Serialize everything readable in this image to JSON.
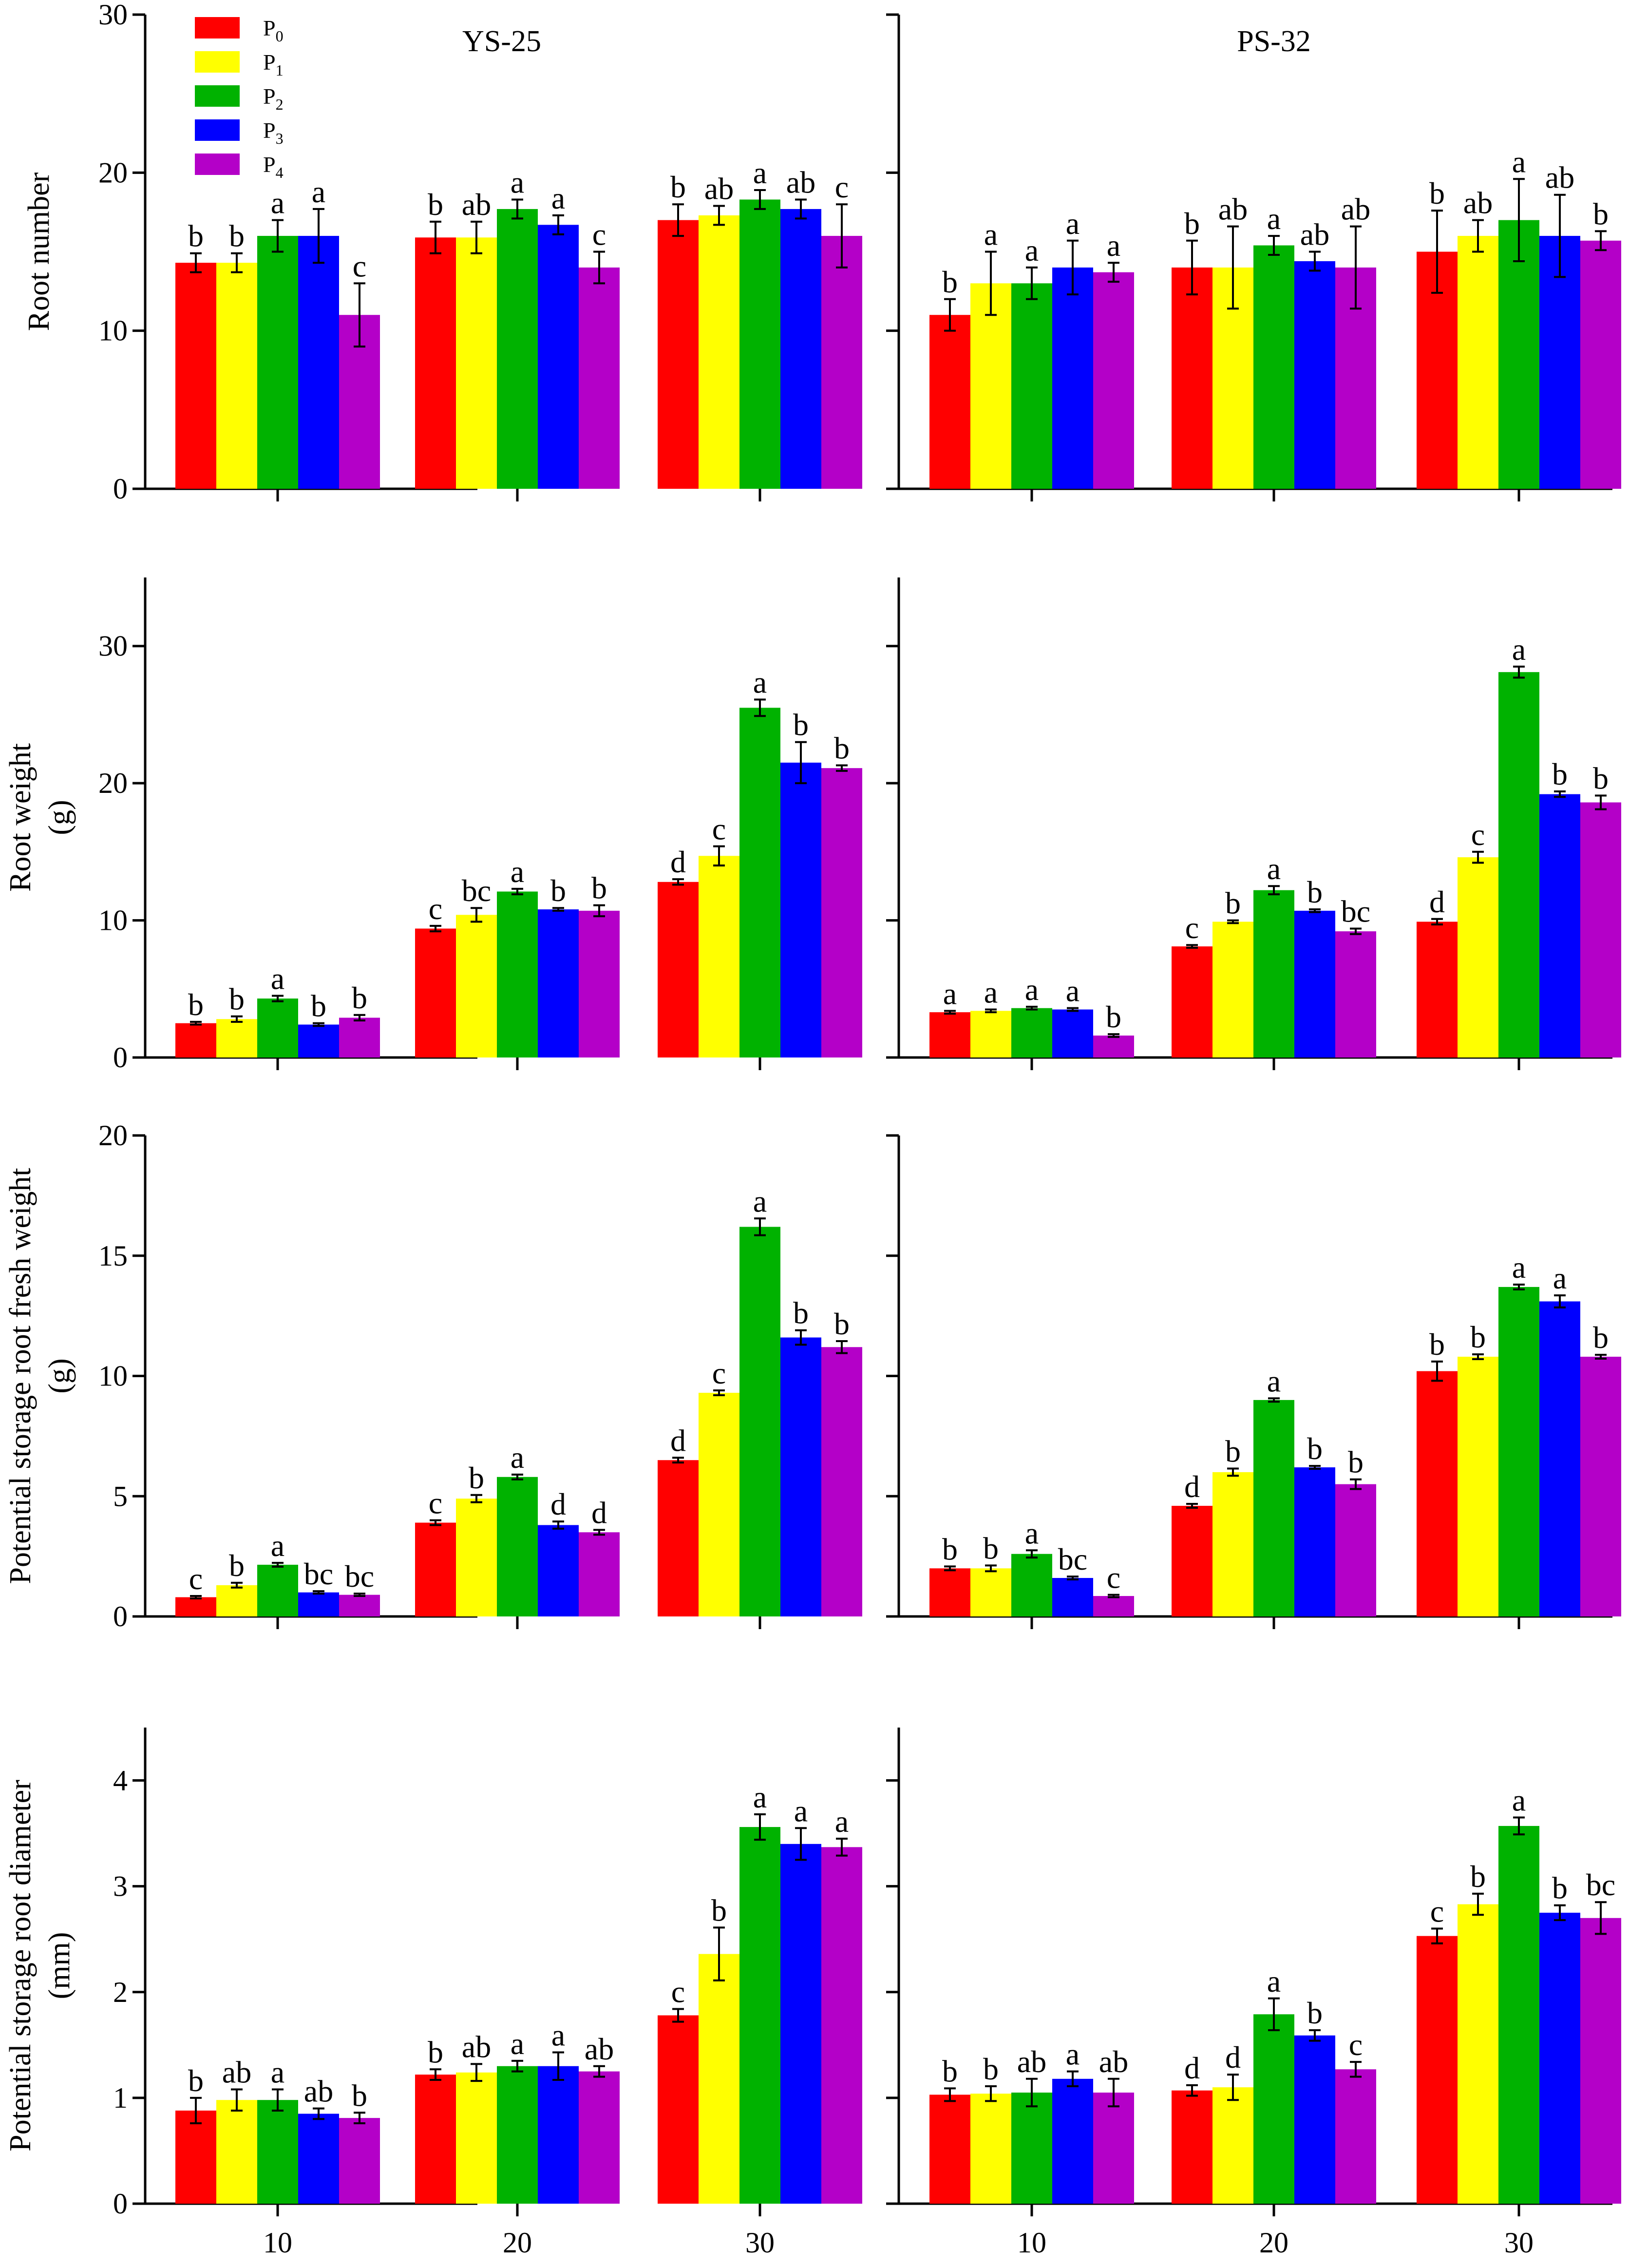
{
  "chart_data": [
    {
      "type": "bar",
      "row": 0,
      "col": 0,
      "title": "YS-25",
      "ylabel": [
        "Root number"
      ],
      "ylim": [
        0,
        30
      ],
      "yticks": [
        0,
        10,
        20,
        30
      ],
      "categories": [
        "10",
        "20",
        "30"
      ],
      "series": [
        {
          "name": "P0",
          "values": [
            14.3,
            15.9,
            17.0
          ],
          "errors": [
            0.6,
            1.0,
            1.0
          ],
          "letters": [
            "b",
            "b",
            "b"
          ]
        },
        {
          "name": "P1",
          "values": [
            14.3,
            15.9,
            17.3
          ],
          "errors": [
            0.6,
            1.0,
            0.6
          ],
          "letters": [
            "b",
            "ab",
            "ab"
          ]
        },
        {
          "name": "P2",
          "values": [
            16.0,
            17.7,
            18.3
          ],
          "errors": [
            1.0,
            0.6,
            0.6
          ],
          "letters": [
            "a",
            "a",
            "a"
          ]
        },
        {
          "name": "P3",
          "values": [
            16.0,
            16.7,
            17.7
          ],
          "errors": [
            1.7,
            0.6,
            0.6
          ],
          "letters": [
            "a",
            "a",
            "ab"
          ]
        },
        {
          "name": "P4",
          "values": [
            11.0,
            14.0,
            16.0
          ],
          "errors": [
            2.0,
            1.0,
            2.0
          ],
          "letters": [
            "c",
            "c",
            "c"
          ]
        }
      ]
    },
    {
      "type": "bar",
      "row": 0,
      "col": 1,
      "title": "PS-32",
      "ylabel": [],
      "ylim": [
        0,
        30
      ],
      "yticks": [
        0,
        10,
        20,
        30
      ],
      "categories": [
        "10",
        "20",
        "30"
      ],
      "series": [
        {
          "name": "P0",
          "values": [
            11.0,
            14.0,
            15.0
          ],
          "errors": [
            1.0,
            1.7,
            2.6
          ],
          "letters": [
            "b",
            "b",
            "b"
          ]
        },
        {
          "name": "P1",
          "values": [
            13.0,
            14.0,
            16.0
          ],
          "errors": [
            2.0,
            2.6,
            1.0
          ],
          "letters": [
            "a",
            "ab",
            "ab"
          ]
        },
        {
          "name": "P2",
          "values": [
            13.0,
            15.4,
            17.0
          ],
          "errors": [
            1.0,
            0.6,
            2.6
          ],
          "letters": [
            "a",
            "a",
            "a"
          ]
        },
        {
          "name": "P3",
          "values": [
            14.0,
            14.4,
            16.0
          ],
          "errors": [
            1.7,
            0.6,
            2.6
          ],
          "letters": [
            "a",
            "ab",
            "ab"
          ]
        },
        {
          "name": "P4",
          "values": [
            13.7,
            14.0,
            15.7
          ],
          "errors": [
            0.6,
            2.6,
            0.6
          ],
          "letters": [
            "a",
            "ab",
            "b"
          ]
        }
      ]
    },
    {
      "type": "bar",
      "row": 1,
      "col": 0,
      "title": "",
      "ylabel": [
        "Root weight",
        "(g)"
      ],
      "ylim": [
        0,
        35
      ],
      "yticks": [
        0,
        10,
        20,
        30
      ],
      "categories": [
        "10",
        "20",
        "30"
      ],
      "series": [
        {
          "name": "P0",
          "values": [
            2.5,
            9.4,
            12.8
          ],
          "errors": [
            0.1,
            0.2,
            0.2
          ],
          "letters": [
            "b",
            "c",
            "d"
          ]
        },
        {
          "name": "P1",
          "values": [
            2.8,
            10.4,
            14.7
          ],
          "errors": [
            0.2,
            0.5,
            0.7
          ],
          "letters": [
            "b",
            "bc",
            "c"
          ]
        },
        {
          "name": "P2",
          "values": [
            4.3,
            12.1,
            25.5
          ],
          "errors": [
            0.2,
            0.2,
            0.6
          ],
          "letters": [
            "a",
            "a",
            "a"
          ]
        },
        {
          "name": "P3",
          "values": [
            2.4,
            10.8,
            21.5
          ],
          "errors": [
            0.1,
            0.1,
            1.5
          ],
          "letters": [
            "b",
            "b",
            "b"
          ]
        },
        {
          "name": "P4",
          "values": [
            2.9,
            10.7,
            21.1
          ],
          "errors": [
            0.2,
            0.4,
            0.2
          ],
          "letters": [
            "b",
            "b",
            "b"
          ]
        }
      ]
    },
    {
      "type": "bar",
      "row": 1,
      "col": 1,
      "title": "",
      "ylabel": [],
      "ylim": [
        0,
        35
      ],
      "yticks": [
        0,
        10,
        20,
        30
      ],
      "categories": [
        "10",
        "20",
        "30"
      ],
      "series": [
        {
          "name": "P0",
          "values": [
            3.3,
            8.1,
            9.9
          ],
          "errors": [
            0.1,
            0.1,
            0.2
          ],
          "letters": [
            "a",
            "c",
            "d"
          ]
        },
        {
          "name": "P1",
          "values": [
            3.4,
            9.9,
            14.6
          ],
          "errors": [
            0.1,
            0.1,
            0.4
          ],
          "letters": [
            "a",
            "b",
            "c"
          ]
        },
        {
          "name": "P2",
          "values": [
            3.6,
            12.2,
            28.1
          ],
          "errors": [
            0.1,
            0.3,
            0.4
          ],
          "letters": [
            "a",
            "a",
            "a"
          ]
        },
        {
          "name": "P3",
          "values": [
            3.5,
            10.7,
            19.2
          ],
          "errors": [
            0.1,
            0.1,
            0.2
          ],
          "letters": [
            "a",
            "b",
            "b"
          ]
        },
        {
          "name": "P4",
          "values": [
            1.6,
            9.2,
            18.6
          ],
          "errors": [
            0.1,
            0.2,
            0.5
          ],
          "letters": [
            "b",
            "bc",
            "b"
          ]
        }
      ]
    },
    {
      "type": "bar",
      "row": 2,
      "col": 0,
      "title": "",
      "ylabel": [
        "Potential storage root fresh weight",
        "(g)"
      ],
      "ylim": [
        0,
        20
      ],
      "yticks": [
        0,
        5,
        10,
        15,
        20
      ],
      "categories": [
        "10",
        "20",
        "30"
      ],
      "series": [
        {
          "name": "P0",
          "values": [
            0.8,
            3.9,
            6.5
          ],
          "errors": [
            0.05,
            0.1,
            0.1
          ],
          "letters": [
            "c",
            "c",
            "d"
          ]
        },
        {
          "name": "P1",
          "values": [
            1.3,
            4.9,
            9.3
          ],
          "errors": [
            0.1,
            0.15,
            0.1
          ],
          "letters": [
            "b",
            "b",
            "c"
          ]
        },
        {
          "name": "P2",
          "values": [
            2.15,
            5.8,
            16.2
          ],
          "errors": [
            0.08,
            0.1,
            0.35
          ],
          "letters": [
            "a",
            "a",
            "a"
          ]
        },
        {
          "name": "P3",
          "values": [
            1.0,
            3.8,
            11.6
          ],
          "errors": [
            0.05,
            0.15,
            0.3
          ],
          "letters": [
            "bc",
            "d",
            "b"
          ]
        },
        {
          "name": "P4",
          "values": [
            0.9,
            3.5,
            11.2
          ],
          "errors": [
            0.05,
            0.1,
            0.25
          ],
          "letters": [
            "bc",
            "d",
            "b"
          ]
        }
      ]
    },
    {
      "type": "bar",
      "row": 2,
      "col": 1,
      "title": "",
      "ylabel": [],
      "ylim": [
        0,
        20
      ],
      "yticks": [
        0,
        5,
        10,
        15,
        20
      ],
      "categories": [
        "10",
        "20",
        "30"
      ],
      "series": [
        {
          "name": "P0",
          "values": [
            2.0,
            4.6,
            10.2
          ],
          "errors": [
            0.08,
            0.08,
            0.4
          ],
          "letters": [
            "b",
            "d",
            "b"
          ]
        },
        {
          "name": "P1",
          "values": [
            2.0,
            6.0,
            10.8
          ],
          "errors": [
            0.12,
            0.15,
            0.1
          ],
          "letters": [
            "b",
            "b",
            "b"
          ]
        },
        {
          "name": "P2",
          "values": [
            2.6,
            9.0,
            13.7
          ],
          "errors": [
            0.15,
            0.07,
            0.1
          ],
          "letters": [
            "a",
            "a",
            "a"
          ]
        },
        {
          "name": "P3",
          "values": [
            1.6,
            6.2,
            13.1
          ],
          "errors": [
            0.06,
            0.06,
            0.25
          ],
          "letters": [
            "bc",
            "b",
            "a"
          ]
        },
        {
          "name": "P4",
          "values": [
            0.85,
            5.5,
            10.8
          ],
          "errors": [
            0.05,
            0.2,
            0.08
          ],
          "letters": [
            "c",
            "b",
            "b"
          ]
        }
      ]
    },
    {
      "type": "bar",
      "row": 3,
      "col": 0,
      "title": "",
      "ylabel": [
        "Potential storage root diameter",
        "(mm)"
      ],
      "ylim": [
        0,
        4.5
      ],
      "yticks": [
        0,
        1,
        2,
        3,
        4
      ],
      "categories": [
        "10",
        "20",
        "30"
      ],
      "series": [
        {
          "name": "P0",
          "values": [
            0.88,
            1.22,
            1.78
          ],
          "errors": [
            0.12,
            0.05,
            0.06
          ],
          "letters": [
            "b",
            "b",
            "c"
          ]
        },
        {
          "name": "P1",
          "values": [
            0.98,
            1.24,
            2.36
          ],
          "errors": [
            0.1,
            0.08,
            0.25
          ],
          "letters": [
            "ab",
            "ab",
            "b"
          ]
        },
        {
          "name": "P2",
          "values": [
            0.98,
            1.3,
            3.56
          ],
          "errors": [
            0.1,
            0.05,
            0.12
          ],
          "letters": [
            "a",
            "a",
            "a"
          ]
        },
        {
          "name": "P3",
          "values": [
            0.85,
            1.3,
            3.4
          ],
          "errors": [
            0.05,
            0.13,
            0.15
          ],
          "letters": [
            "ab",
            "a",
            "a"
          ]
        },
        {
          "name": "P4",
          "values": [
            0.81,
            1.25,
            3.37
          ],
          "errors": [
            0.05,
            0.05,
            0.08
          ],
          "letters": [
            "b",
            "ab",
            "a"
          ]
        }
      ]
    },
    {
      "type": "bar",
      "row": 3,
      "col": 1,
      "title": "",
      "ylabel": [],
      "ylim": [
        0,
        4.5
      ],
      "yticks": [
        0,
        1,
        2,
        3,
        4
      ],
      "categories": [
        "10",
        "20",
        "30"
      ],
      "series": [
        {
          "name": "P0",
          "values": [
            1.03,
            1.07,
            2.53
          ],
          "errors": [
            0.06,
            0.05,
            0.07
          ],
          "letters": [
            "b",
            "d",
            "c"
          ]
        },
        {
          "name": "P1",
          "values": [
            1.04,
            1.1,
            2.83
          ],
          "errors": [
            0.07,
            0.12,
            0.1
          ],
          "letters": [
            "b",
            "d",
            "b"
          ]
        },
        {
          "name": "P2",
          "values": [
            1.05,
            1.79,
            3.57
          ],
          "errors": [
            0.13,
            0.15,
            0.08
          ],
          "letters": [
            "ab",
            "a",
            "a"
          ]
        },
        {
          "name": "P3",
          "values": [
            1.18,
            1.59,
            2.75
          ],
          "errors": [
            0.07,
            0.05,
            0.07
          ],
          "letters": [
            "a",
            "b",
            "b"
          ]
        },
        {
          "name": "P4",
          "values": [
            1.05,
            1.27,
            2.7
          ],
          "errors": [
            0.13,
            0.07,
            0.15
          ],
          "letters": [
            "ab",
            "c",
            "bc"
          ]
        }
      ]
    }
  ],
  "legend": [
    {
      "base": "P",
      "sub": "0",
      "color": "#ff0000"
    },
    {
      "base": "P",
      "sub": "1",
      "color": "#ffff00"
    },
    {
      "base": "P",
      "sub": "2",
      "color": "#00b200"
    },
    {
      "base": "P",
      "sub": "3",
      "color": "#0000ff"
    },
    {
      "base": "P",
      "sub": "4",
      "color": "#b400c8"
    }
  ],
  "x_tick_labels": [
    "10",
    "20",
    "30"
  ]
}
